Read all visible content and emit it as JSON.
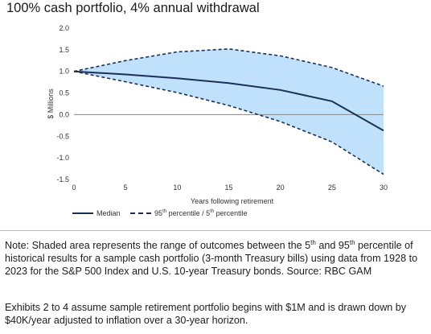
{
  "title": "100% cash portfolio, 4% annual withdrawal",
  "chart_data": {
    "type": "area",
    "title": "100% cash portfolio, 4% annual withdrawal",
    "xlabel": "Years following retirement",
    "ylabel": "$ Millions",
    "xlim": [
      0,
      30
    ],
    "ylim": [
      -1.5,
      2.0
    ],
    "x_ticks": [
      "0",
      "5",
      "10",
      "15",
      "20",
      "25",
      "30"
    ],
    "y_ticks": [
      "2.0",
      "1.5",
      "1.0",
      "0.5",
      "0.0",
      "-0.5",
      "-1.0",
      "-1.5"
    ],
    "x": [
      0,
      5,
      10,
      15,
      20,
      25,
      30
    ],
    "series": [
      {
        "name": "Median",
        "values": [
          1.0,
          0.93,
          0.84,
          0.73,
          0.57,
          0.31,
          -0.37
        ]
      },
      {
        "name": "95th percentile",
        "values": [
          1.0,
          1.25,
          1.45,
          1.52,
          1.36,
          1.09,
          0.66
        ]
      },
      {
        "name": "5th percentile",
        "values": [
          1.0,
          0.76,
          0.51,
          0.21,
          -0.16,
          -0.63,
          -1.38
        ]
      }
    ],
    "legend": {
      "median": "Median",
      "percentile": "95th percentile / 5th percentile"
    },
    "colors": {
      "band": "#bfe1fb",
      "line": "#1c2f55",
      "zero_line": "#888888"
    }
  },
  "note": {
    "text": "Note: Shaded area represents the range of outcomes between the 5th and 95th percentile of historical results for a sample cash portfolio (3-month Treasury bills) using data from 1928 to 2023 for the S&P 500 Index and U.S. 10-year Treasury bonds. Source: RBC GAM"
  },
  "exhibits": {
    "text": "Exhibits 2 to 4 assume sample retirement portfolio begins with $1M and is drawn down by $40K/year adjusted to inflation over a 30-year horizon."
  }
}
